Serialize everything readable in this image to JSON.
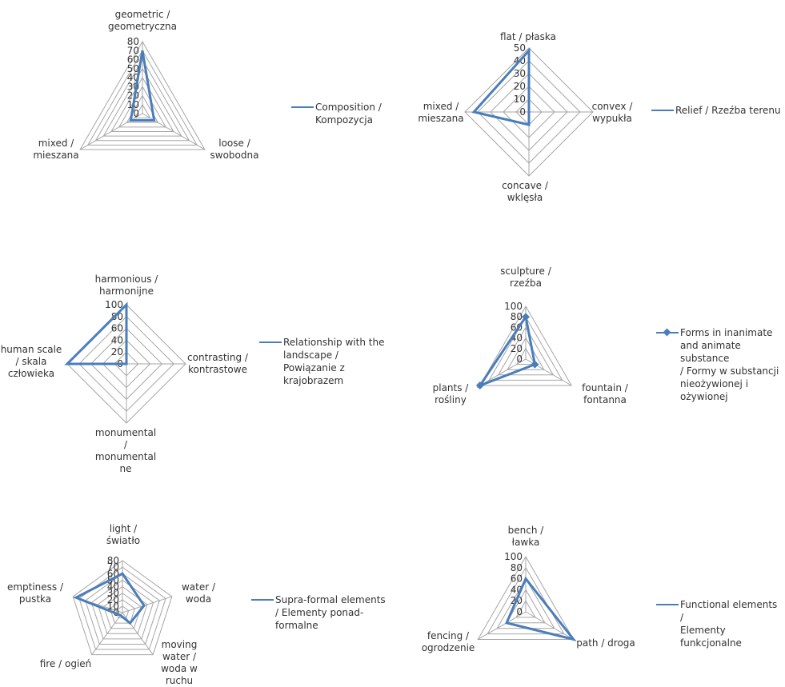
{
  "chart_data": [
    {
      "type": "radar",
      "title": "",
      "axes": [
        "geometric / geometryczna",
        "loose / swobodna",
        "mixed / mieszana"
      ],
      "ticks": [
        0,
        10,
        20,
        30,
        40,
        50,
        60,
        70,
        80
      ],
      "ylim": [
        0,
        80
      ],
      "grid": true,
      "legend_position": "right",
      "series": [
        {
          "name": "Composition / Kompozycja",
          "values": [
            70,
            15,
            15
          ],
          "color": "#4a7ebb",
          "marker": "none"
        }
      ]
    },
    {
      "type": "radar",
      "title": "",
      "axes": [
        "flat / płaska",
        "convex / wypukła",
        "concave / wklęsła",
        "mixed / mieszana"
      ],
      "ticks": [
        0,
        10,
        20,
        30,
        40,
        50
      ],
      "ylim": [
        0,
        50
      ],
      "grid": true,
      "legend_position": "right",
      "series": [
        {
          "name": "Relief / Rzeźba terenu",
          "values": [
            48,
            0,
            10,
            43
          ],
          "color": "#4a7ebb",
          "marker": "none"
        }
      ]
    },
    {
      "type": "radar",
      "title": "",
      "axes": [
        "harmonious / harmonijne",
        "contrasting / kontrastowe",
        "monumental / monumentalne",
        "human scale / skala człowieka"
      ],
      "ticks": [
        0,
        20,
        40,
        60,
        80,
        100
      ],
      "ylim": [
        0,
        100
      ],
      "grid": true,
      "legend_position": "right",
      "series": [
        {
          "name": "Relationship with the landscape / Powiązanie z krajobrazem",
          "values": [
            100,
            0,
            0,
            100
          ],
          "color": "#4a7ebb",
          "marker": "none"
        }
      ]
    },
    {
      "type": "radar",
      "title": "",
      "axes": [
        "sculpture / rzeźba",
        "fountain / fontanna",
        "plants / rośliny"
      ],
      "ticks": [
        0,
        20,
        40,
        60,
        80,
        100
      ],
      "ylim": [
        0,
        100
      ],
      "grid": true,
      "legend_position": "right",
      "series": [
        {
          "name": "Forms in inanimate and animate substance / Formy w substancji nieożywionej i ożywionej",
          "values": [
            80,
            20,
            100
          ],
          "color": "#4a7ebb",
          "marker": "diamond"
        }
      ]
    },
    {
      "type": "radar",
      "title": "",
      "axes": [
        "light / światło",
        "water / woda",
        "moving water / woda w ruchu",
        "fire / ogień",
        "emptiness / pustka"
      ],
      "ticks": [
        0,
        10,
        20,
        30,
        40,
        50,
        60,
        70,
        80
      ],
      "ylim": [
        0,
        80
      ],
      "grid": true,
      "legend_position": "right",
      "series": [
        {
          "name": "Supra-formal elements / Elementy ponad-formalne",
          "values": [
            60,
            35,
            20,
            5,
            75
          ],
          "color": "#4a7ebb",
          "marker": "none"
        }
      ]
    },
    {
      "type": "radar",
      "title": "",
      "axes": [
        "bench / ławka",
        "path / droga",
        "fencing / ogrodzenie"
      ],
      "ticks": [
        0,
        20,
        40,
        60,
        80,
        100
      ],
      "ylim": [
        0,
        100
      ],
      "grid": true,
      "legend_position": "right",
      "series": [
        {
          "name": "Functional elements / Elementy funkcjonalne",
          "values": [
            60,
            100,
            40
          ],
          "color": "#4a7ebb",
          "marker": "none"
        }
      ]
    }
  ],
  "legends": [
    {
      "lines": [
        "Composition /",
        "Kompozycja"
      ]
    },
    {
      "lines": [
        "Relief / Rzeźba terenu"
      ]
    },
    {
      "lines": [
        "Relationship with the",
        "landscape /",
        "Powiązanie z",
        "krajobrazem"
      ]
    },
    {
      "lines": [
        "Forms in inanimate",
        "and animate substance",
        "/ Formy w substancji",
        "nieożywionej i",
        "ożywionej"
      ]
    },
    {
      "lines": [
        "Supra-formal elements",
        "/ Elementy ponad-",
        "formalne"
      ]
    },
    {
      "lines": [
        "Functional elements /",
        "Elementy funkcjonalne"
      ]
    }
  ],
  "axis_label_lines": [
    [
      [
        "geometric /",
        "geometryczna"
      ],
      [
        "loose /",
        "swobodna"
      ],
      [
        "mixed /",
        "mieszana"
      ]
    ],
    [
      [
        "flat / płaska"
      ],
      [
        "convex /",
        "wypukła"
      ],
      [
        "concave /",
        "wklęsła"
      ],
      [
        "mixed /",
        "mieszana"
      ]
    ],
    [
      [
        "harmonious /",
        "harmonijne"
      ],
      [
        "contrasting /",
        "kontrastowe"
      ],
      [
        "monumental",
        "/",
        "monumental",
        "ne"
      ],
      [
        "human scale",
        "/ skala",
        "człowieka"
      ]
    ],
    [
      [
        "sculpture /",
        "rzeźba"
      ],
      [
        "fountain /",
        "fontanna"
      ],
      [
        "plants /",
        "rośliny"
      ]
    ],
    [
      [
        "light /",
        "światło"
      ],
      [
        "water /",
        "woda"
      ],
      [
        "moving",
        "water /",
        "woda w",
        "ruchu"
      ],
      [
        "fire / ogień"
      ],
      [
        "emptiness /",
        "pustka"
      ]
    ],
    [
      [
        "bench /",
        "ławka"
      ],
      [
        "path / droga"
      ],
      [
        "fencing /",
        "ogrodzenie"
      ]
    ]
  ]
}
